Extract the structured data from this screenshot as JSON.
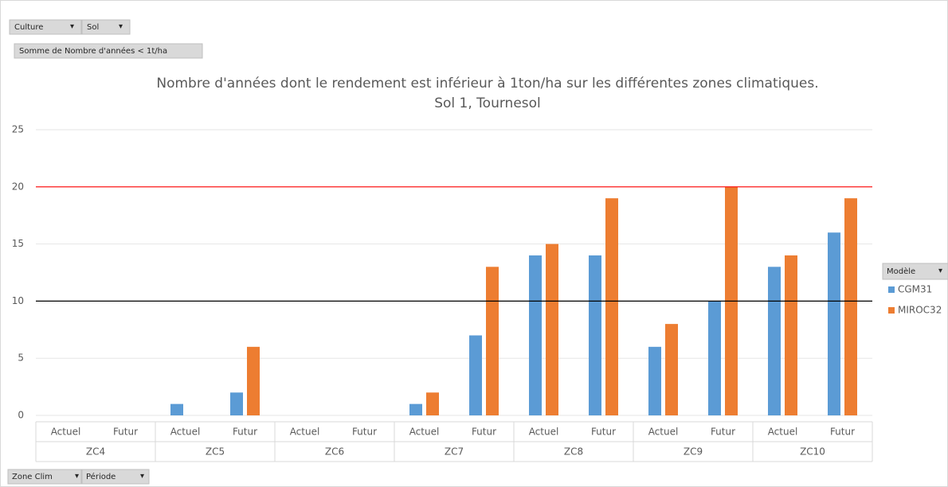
{
  "chart_data": {
    "type": "bar",
    "title": "Nombre d'années dont le rendement est inférieur à 1ton/ha sur les différentes zones climatiques.",
    "subtitle": "Sol 1, Tournesol",
    "groups": [
      "ZC4",
      "ZC5",
      "ZC6",
      "ZC7",
      "ZC8",
      "ZC9",
      "ZC10"
    ],
    "categories": [
      "Actuel",
      "Futur",
      "Actuel",
      "Futur",
      "Actuel",
      "Futur",
      "Actuel",
      "Futur",
      "Actuel",
      "Futur",
      "Actuel",
      "Futur",
      "Actuel",
      "Futur"
    ],
    "series": [
      {
        "name": "CGM31",
        "color": "#5b9bd5",
        "values": [
          0,
          0,
          1,
          2,
          0,
          0,
          1,
          7,
          14,
          14,
          6,
          10,
          13,
          16
        ]
      },
      {
        "name": "MIROC32",
        "color": "#ed7d31",
        "values": [
          0,
          0,
          0,
          6,
          0,
          0,
          2,
          13,
          15,
          19,
          8,
          20,
          14,
          19
        ]
      }
    ],
    "ylim": [
      0,
      25
    ],
    "yticks": [
      0,
      5,
      10,
      15,
      20,
      25
    ],
    "grid": true,
    "reference_lines": [
      {
        "value": 20,
        "color": "#ff0000"
      },
      {
        "value": 10,
        "color": "#000000"
      }
    ],
    "legend_title": "Modèle",
    "legend": "right",
    "filters": [
      "Culture",
      "Sol"
    ],
    "value_field": "Somme de Nombre d'années < 1t/ha",
    "axis_fields": [
      "Zone Clim",
      "Période"
    ]
  }
}
